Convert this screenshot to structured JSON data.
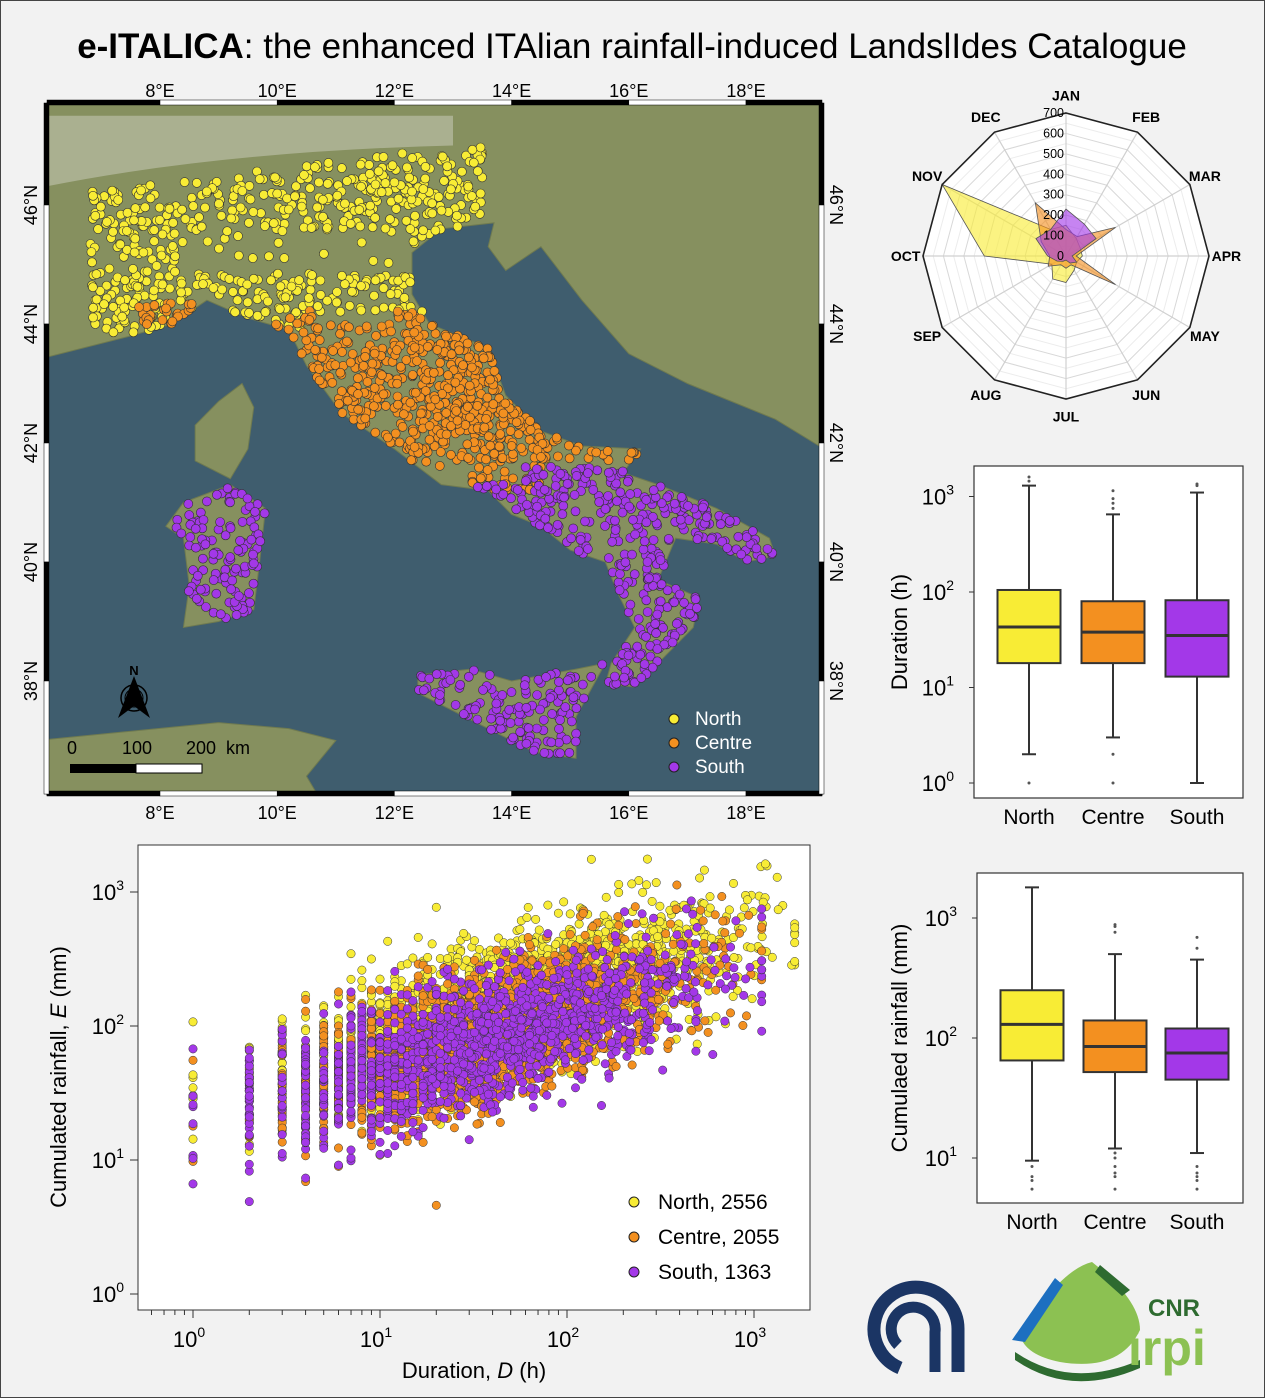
{
  "title": {
    "bold": "e-ITALICA",
    "rest": ": the enhanced ITAlian rainfall-induced LandslIdes Catalogue"
  },
  "colors": {
    "north": "#f8ec35",
    "centre": "#f39020",
    "south": "#a338e8",
    "sea": "#3f5d6e",
    "land": "#86905f",
    "cnr_blue": "#1b3564",
    "irpi_green": "#8cc152",
    "irpi_dark": "#2e6b30",
    "irpi_blue": "#1d6fc0"
  },
  "map": {
    "lon_ticks": [
      "8°E",
      "10°E",
      "12°E",
      "14°E",
      "16°E",
      "18°E"
    ],
    "lon_values": [
      8,
      10,
      12,
      14,
      16,
      18
    ],
    "lat_ticks": [
      "46°N",
      "44°N",
      "42°N",
      "40°N",
      "38°N"
    ],
    "lat_values": [
      46,
      44,
      42,
      40,
      38
    ],
    "north_label": "N",
    "scale_labels": [
      "0",
      "100",
      "200",
      "km"
    ],
    "legend": [
      "North",
      "Centre",
      "South"
    ]
  },
  "chart_data": [
    {
      "type": "radar",
      "categories": [
        "JAN",
        "FEB",
        "MAR",
        "APR",
        "MAY",
        "JUN",
        "JUL",
        "AUG",
        "SEP",
        "OCT",
        "NOV",
        "DEC"
      ],
      "r_ticks": [
        "0",
        "100",
        "200",
        "300",
        "400",
        "500",
        "600",
        "700"
      ],
      "rlim": [
        0,
        700
      ],
      "series": [
        {
          "region": "north",
          "values": [
            150,
            100,
            80,
            80,
            60,
            80,
            130,
            130,
            80,
            400,
            700,
            150
          ]
        },
        {
          "region": "centre",
          "values": [
            130,
            110,
            280,
            50,
            280,
            50,
            60,
            50,
            100,
            80,
            140,
            300
          ]
        },
        {
          "region": "south",
          "values": [
            230,
            180,
            170,
            30,
            60,
            40,
            20,
            30,
            50,
            90,
            170,
            150
          ]
        }
      ]
    },
    {
      "type": "box",
      "ylabel": "Duration (h)",
      "yscale": "log",
      "ylim_exp": [
        0,
        3
      ],
      "tick_base": "10",
      "tick_exponents": [
        "0",
        "1",
        "2",
        "3"
      ],
      "categories": [
        "North",
        "Centre",
        "South"
      ],
      "boxes": [
        {
          "whisker_low": 2,
          "q1": 18,
          "median": 43,
          "q3": 105,
          "whisker_high": 1300,
          "outliers": [
            1,
            1450,
            1600
          ]
        },
        {
          "whisker_low": 3,
          "q1": 18,
          "median": 38,
          "q3": 80,
          "whisker_high": 650,
          "outliers": [
            1,
            2,
            750,
            850,
            950,
            1150
          ]
        },
        {
          "whisker_low": 1,
          "q1": 13,
          "median": 35,
          "q3": 82,
          "whisker_high": 1100,
          "outliers": [
            1300,
            1350
          ]
        }
      ]
    },
    {
      "type": "box",
      "ylabel": "Cumulaed rainfall (mm)",
      "yscale": "log",
      "tick_base": "10",
      "tick_exponents": [
        "1",
        "2",
        "3"
      ],
      "categories": [
        "North",
        "Centre",
        "South"
      ],
      "boxes": [
        {
          "whisker_low": 9.5,
          "q1": 65,
          "median": 130,
          "q3": 250,
          "whisker_high": 1800,
          "outliers": [
            5.5,
            6.5,
            7,
            8.5
          ]
        },
        {
          "whisker_low": 12,
          "q1": 52,
          "median": 85,
          "q3": 140,
          "whisker_high": 500,
          "outliers": [
            5.5,
            7,
            7.5,
            8.5,
            10,
            11,
            760,
            850,
            880
          ]
        },
        {
          "whisker_low": 11,
          "q1": 45,
          "median": 75,
          "q3": 120,
          "whisker_high": 450,
          "outliers": [
            5.5,
            6.5,
            7,
            7.5,
            8.5,
            560,
            690
          ]
        }
      ]
    },
    {
      "type": "scatter",
      "xscale": "log",
      "yscale": "log",
      "xlim": [
        0.5,
        2000
      ],
      "ylim": [
        0.75,
        2200
      ],
      "xlabel": {
        "pre": "Duration, ",
        "var": "D",
        "post": " (h)"
      },
      "ylabel": {
        "pre": "Cumulated rainfall, ",
        "var": "E",
        "post": " (mm)"
      },
      "tick_base": "10",
      "x_tick_exponents": [
        "0",
        "1",
        "2",
        "3"
      ],
      "y_tick_exponents": [
        "0",
        "1",
        "2",
        "3"
      ],
      "series": [
        {
          "name": "North, 2556",
          "region": "north",
          "count": 2556
        },
        {
          "name": "Centre, 2055",
          "region": "centre",
          "count": 2055
        },
        {
          "name": "South, 1363",
          "region": "south",
          "count": 1363
        }
      ]
    }
  ],
  "logos": {
    "cnr": "CNR",
    "irpi": "irpi",
    "irpi_cnr": "CNR"
  }
}
